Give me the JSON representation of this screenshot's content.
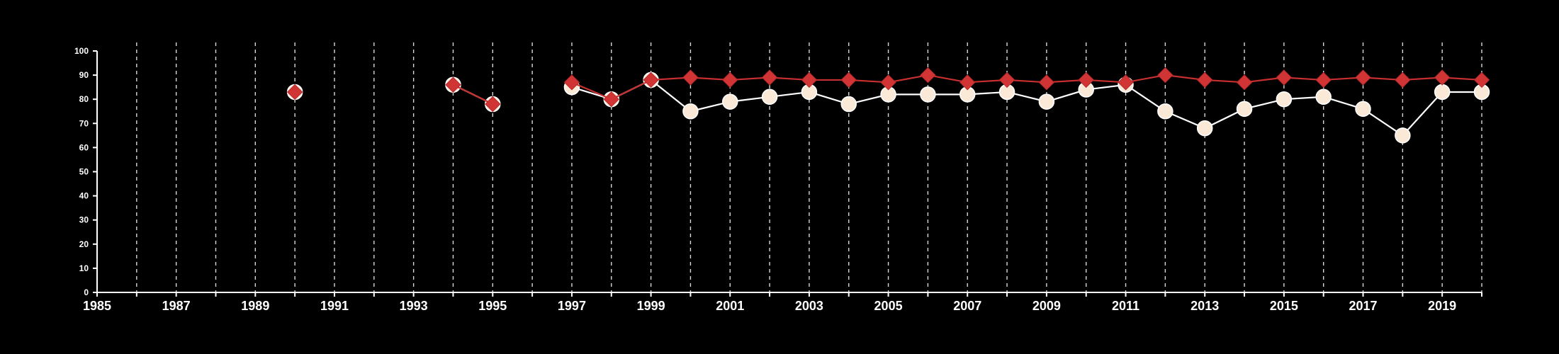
{
  "chart_data": {
    "type": "line",
    "title": "",
    "xlabel": "",
    "ylabel": "",
    "xlim": [
      1985,
      2020
    ],
    "ylim": [
      0,
      100
    ],
    "x_ticks": [
      1985,
      1987,
      1989,
      1991,
      1993,
      1995,
      1997,
      1999,
      2001,
      2003,
      2005,
      2007,
      2009,
      2011,
      2013,
      2015,
      2017,
      2019
    ],
    "y_ticks": [
      0,
      10,
      20,
      30,
      40,
      50,
      60,
      70,
      80,
      90,
      100
    ],
    "grid": "vertical dashed at every year",
    "legend": "none",
    "background_color": "#000000",
    "series": [
      {
        "marker": "circle",
        "color": "#fbe9d7",
        "line_color": "#ffffff",
        "points": [
          {
            "x": 1990,
            "y": 83
          },
          {
            "x": 1994,
            "y": 86
          },
          {
            "x": 1995,
            "y": 78
          },
          {
            "x": 1997,
            "y": 85
          },
          {
            "x": 1998,
            "y": 80
          },
          {
            "x": 1999,
            "y": 88
          },
          {
            "x": 2000,
            "y": 75
          },
          {
            "x": 2001,
            "y": 79
          },
          {
            "x": 2002,
            "y": 81
          },
          {
            "x": 2003,
            "y": 83
          },
          {
            "x": 2004,
            "y": 78
          },
          {
            "x": 2005,
            "y": 82
          },
          {
            "x": 2006,
            "y": 82
          },
          {
            "x": 2007,
            "y": 82
          },
          {
            "x": 2008,
            "y": 83
          },
          {
            "x": 2009,
            "y": 79
          },
          {
            "x": 2010,
            "y": 84
          },
          {
            "x": 2011,
            "y": 86
          },
          {
            "x": 2012,
            "y": 75
          },
          {
            "x": 2013,
            "y": 68
          },
          {
            "x": 2014,
            "y": 76
          },
          {
            "x": 2015,
            "y": 80
          },
          {
            "x": 2016,
            "y": 81
          },
          {
            "x": 2017,
            "y": 76
          },
          {
            "x": 2018,
            "y": 65
          },
          {
            "x": 2019,
            "y": 83
          },
          {
            "x": 2020,
            "y": 83
          }
        ]
      },
      {
        "marker": "diamond",
        "color": "#d03434",
        "line_color": "#c83030",
        "points": [
          {
            "x": 1990,
            "y": 83
          },
          {
            "x": 1994,
            "y": 86
          },
          {
            "x": 1995,
            "y": 78
          },
          {
            "x": 1997,
            "y": 87
          },
          {
            "x": 1998,
            "y": 80
          },
          {
            "x": 1999,
            "y": 88
          },
          {
            "x": 2000,
            "y": 89
          },
          {
            "x": 2001,
            "y": 88
          },
          {
            "x": 2002,
            "y": 89
          },
          {
            "x": 2003,
            "y": 88
          },
          {
            "x": 2004,
            "y": 88
          },
          {
            "x": 2005,
            "y": 87
          },
          {
            "x": 2006,
            "y": 90
          },
          {
            "x": 2007,
            "y": 87
          },
          {
            "x": 2008,
            "y": 88
          },
          {
            "x": 2009,
            "y": 87
          },
          {
            "x": 2010,
            "y": 88
          },
          {
            "x": 2011,
            "y": 87
          },
          {
            "x": 2012,
            "y": 90
          },
          {
            "x": 2013,
            "y": 88
          },
          {
            "x": 2014,
            "y": 87
          },
          {
            "x": 2015,
            "y": 89
          },
          {
            "x": 2016,
            "y": 88
          },
          {
            "x": 2017,
            "y": 89
          },
          {
            "x": 2018,
            "y": 88
          },
          {
            "x": 2019,
            "y": 89
          },
          {
            "x": 2020,
            "y": 88
          }
        ]
      }
    ]
  }
}
